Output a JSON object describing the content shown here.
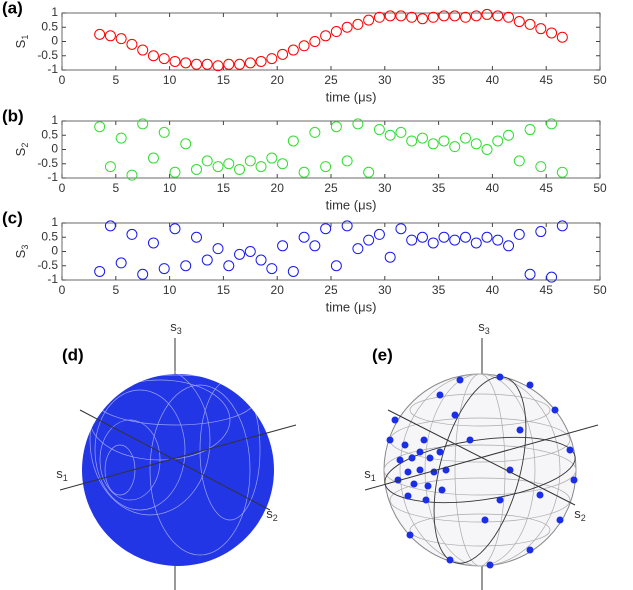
{
  "chart_data": [
    {
      "type": "scatter",
      "label": "(a)",
      "ylabel": "S",
      "ylabel_sub": "1",
      "xlabel": "time (μs)",
      "color": "#ff0000",
      "x": [
        3.5,
        4.5,
        5.5,
        6.5,
        7.5,
        8.5,
        9.5,
        10.5,
        11.5,
        12.5,
        13.5,
        14.5,
        15.5,
        16.5,
        17.5,
        18.5,
        19.5,
        20.5,
        21.5,
        22.5,
        23.5,
        24.5,
        25.5,
        26.5,
        27.5,
        28.5,
        29.5,
        30.5,
        31.5,
        32.5,
        33.5,
        34.5,
        35.5,
        36.5,
        37.5,
        38.5,
        39.5,
        40.5,
        41.5,
        42.5,
        43.5,
        44.5,
        45.5,
        46.5
      ],
      "values": [
        0.25,
        0.2,
        0.1,
        -0.1,
        -0.3,
        -0.5,
        -0.6,
        -0.7,
        -0.75,
        -0.8,
        -0.8,
        -0.85,
        -0.8,
        -0.8,
        -0.75,
        -0.7,
        -0.6,
        -0.45,
        -0.3,
        -0.15,
        0,
        0.2,
        0.35,
        0.5,
        0.6,
        0.75,
        0.85,
        0.9,
        0.9,
        0.85,
        0.8,
        0.85,
        0.9,
        0.9,
        0.85,
        0.9,
        0.95,
        0.9,
        0.85,
        0.7,
        0.6,
        0.45,
        0.3,
        0.15
      ],
      "xlim": [
        0,
        50
      ],
      "xticks": [
        0,
        5,
        10,
        15,
        20,
        25,
        30,
        35,
        40,
        45,
        50
      ],
      "ylim": [
        -1,
        1
      ],
      "yticks": [
        -1,
        -0.5,
        0,
        0.5,
        1
      ]
    },
    {
      "type": "scatter",
      "label": "(b)",
      "ylabel": "S",
      "ylabel_sub": "2",
      "xlabel": "time (μs)",
      "color": "#33dd33",
      "x": [
        3.5,
        4.5,
        5.5,
        6.5,
        7.5,
        8.5,
        9.5,
        10.5,
        11.5,
        12.5,
        13.5,
        14.5,
        15.5,
        16.5,
        17.5,
        18.5,
        19.5,
        20.5,
        21.5,
        22.5,
        23.5,
        24.5,
        25.5,
        26.5,
        27.5,
        28.5,
        29.5,
        30.5,
        31.5,
        32.5,
        33.5,
        34.5,
        35.5,
        36.5,
        37.5,
        38.5,
        39.5,
        40.5,
        41.5,
        42.5,
        43.5,
        44.5,
        45.5,
        46.5
      ],
      "values": [
        0.8,
        -0.6,
        0.4,
        -0.9,
        0.9,
        -0.3,
        0.6,
        -0.8,
        0.2,
        -0.7,
        -0.4,
        -0.6,
        -0.5,
        -0.7,
        -0.4,
        -0.6,
        -0.3,
        -0.5,
        0.3,
        -0.8,
        0.6,
        -0.6,
        0.8,
        -0.4,
        0.9,
        -0.8,
        0.7,
        0.5,
        0.6,
        0.3,
        0.4,
        0.2,
        0.3,
        0.1,
        0.4,
        0.2,
        0,
        0.3,
        0.5,
        -0.4,
        0.7,
        -0.6,
        0.9,
        -0.8
      ],
      "xlim": [
        0,
        50
      ],
      "xticks": [
        0,
        5,
        10,
        15,
        20,
        25,
        30,
        35,
        40,
        45,
        50
      ],
      "ylim": [
        -1,
        1
      ],
      "yticks": [
        -1,
        -0.5,
        0,
        0.5,
        1
      ]
    },
    {
      "type": "scatter",
      "label": "(c)",
      "ylabel": "S",
      "ylabel_sub": "3",
      "xlabel": "time (μs)",
      "color": "#1a1aee",
      "x": [
        3.5,
        4.5,
        5.5,
        6.5,
        7.5,
        8.5,
        9.5,
        10.5,
        11.5,
        12.5,
        13.5,
        14.5,
        15.5,
        16.5,
        17.5,
        18.5,
        19.5,
        20.5,
        21.5,
        22.5,
        23.5,
        24.5,
        25.5,
        26.5,
        27.5,
        28.5,
        29.5,
        30.5,
        31.5,
        32.5,
        33.5,
        34.5,
        35.5,
        36.5,
        37.5,
        38.5,
        39.5,
        40.5,
        41.5,
        42.5,
        43.5,
        44.5,
        45.5,
        46.5
      ],
      "values": [
        -0.7,
        0.9,
        -0.4,
        0.6,
        -0.8,
        0.3,
        -0.6,
        0.8,
        -0.5,
        0.5,
        -0.3,
        0.1,
        -0.5,
        -0.1,
        0,
        -0.3,
        -0.6,
        0.2,
        -0.7,
        0.5,
        0.2,
        0.8,
        -0.5,
        0.9,
        0.1,
        0.4,
        0.6,
        -0.2,
        0.8,
        0.4,
        0.5,
        0.3,
        0.5,
        0.4,
        0.5,
        0.3,
        0.5,
        0.4,
        0.2,
        0.6,
        -0.8,
        0.7,
        -0.9,
        0.9
      ],
      "xlim": [
        0,
        50
      ],
      "xticks": [
        0,
        5,
        10,
        15,
        20,
        25,
        30,
        35,
        40,
        45,
        50
      ],
      "ylim": [
        -1,
        1
      ],
      "yticks": [
        -1,
        -0.5,
        0,
        0.5,
        1
      ]
    }
  ],
  "spheres": [
    {
      "label": "(d)",
      "axes": [
        {
          "letter": "s",
          "sub": "3"
        },
        {
          "letter": "s",
          "sub": "1"
        },
        {
          "letter": "s",
          "sub": "2"
        }
      ]
    },
    {
      "label": "(e)",
      "axes": [
        {
          "letter": "s",
          "sub": "3"
        },
        {
          "letter": "s",
          "sub": "1"
        },
        {
          "letter": "s",
          "sub": "2"
        }
      ]
    }
  ]
}
